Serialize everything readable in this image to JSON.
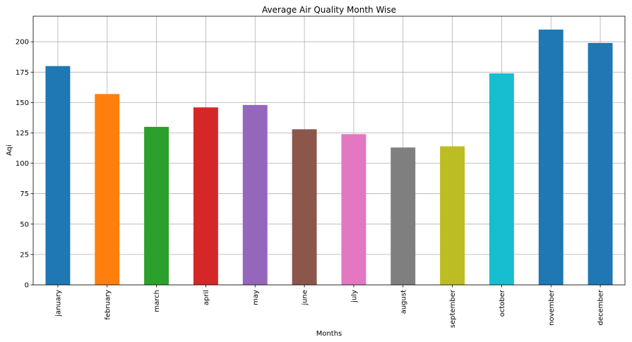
{
  "chart_data": {
    "type": "bar",
    "title": "Average Air Quality Month Wise",
    "xlabel": "Months",
    "ylabel": "Aqi",
    "categories": [
      "january",
      "february",
      "march",
      "april",
      "may",
      "june",
      "july",
      "august",
      "september",
      "october",
      "november",
      "december"
    ],
    "values": [
      180,
      157,
      130,
      146,
      148,
      128,
      124,
      113,
      114,
      174,
      210,
      199
    ],
    "colors": [
      "#1f77b4",
      "#ff7f0e",
      "#2ca02c",
      "#d62728",
      "#9467bd",
      "#8c564b",
      "#e377c2",
      "#7f7f7f",
      "#bcbd22",
      "#17becf",
      "#1f77b4",
      "#1f77b4"
    ],
    "ylim": [
      0,
      221
    ],
    "yticks": [
      0,
      25,
      50,
      75,
      100,
      125,
      150,
      175,
      200
    ],
    "grid": true,
    "legend": "none"
  }
}
